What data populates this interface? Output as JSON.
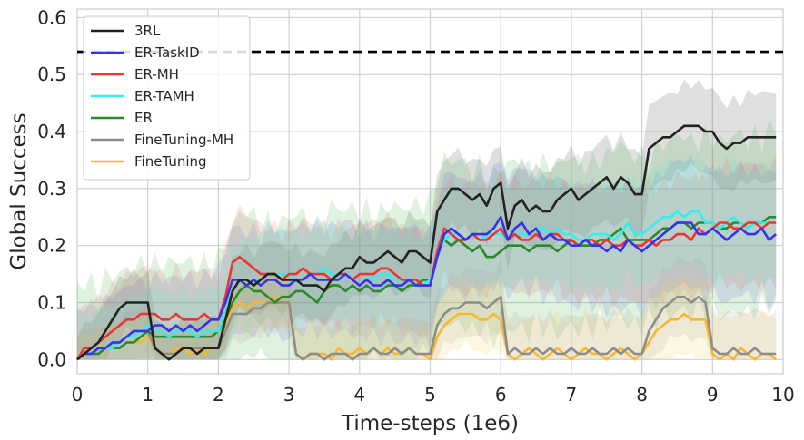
{
  "chart_data": {
    "type": "line",
    "title": "",
    "xlabel": "Time-steps (1e6)",
    "ylabel": "Global Success",
    "xlim": [
      0,
      10
    ],
    "ylim": [
      -0.025,
      0.615
    ],
    "xticks": [
      "0",
      "1",
      "2",
      "3",
      "4",
      "5",
      "6",
      "7",
      "8",
      "9",
      "10"
    ],
    "yticks": [
      "0.0",
      "0.1",
      "0.2",
      "0.3",
      "0.4",
      "0.5",
      "0.6"
    ],
    "grid": true,
    "legend_position": "top-left",
    "reference_line": {
      "y": 0.54,
      "style": "dashed",
      "color": "#000000"
    },
    "x": [
      0.0,
      0.1,
      0.2,
      0.3,
      0.4,
      0.5,
      0.6,
      0.7,
      0.8,
      0.9,
      1.0,
      1.1,
      1.2,
      1.3,
      1.4,
      1.5,
      1.6,
      1.7,
      1.8,
      1.9,
      2.0,
      2.1,
      2.2,
      2.3,
      2.4,
      2.5,
      2.6,
      2.7,
      2.8,
      2.9,
      3.0,
      3.1,
      3.2,
      3.3,
      3.4,
      3.5,
      3.6,
      3.7,
      3.8,
      3.9,
      4.0,
      4.1,
      4.2,
      4.3,
      4.4,
      4.5,
      4.6,
      4.7,
      4.8,
      4.9,
      5.0,
      5.1,
      5.2,
      5.3,
      5.4,
      5.5,
      5.6,
      5.7,
      5.8,
      5.9,
      6.0,
      6.1,
      6.2,
      6.3,
      6.4,
      6.5,
      6.6,
      6.7,
      6.8,
      6.9,
      7.0,
      7.1,
      7.2,
      7.3,
      7.4,
      7.5,
      7.6,
      7.7,
      7.8,
      7.9,
      8.0,
      8.1,
      8.2,
      8.3,
      8.4,
      8.5,
      8.6,
      8.7,
      8.8,
      8.9,
      9.0,
      9.1,
      9.2,
      9.3,
      9.4,
      9.5,
      9.6,
      9.7,
      9.8,
      9.9
    ],
    "series": [
      {
        "name": "3RL",
        "color": "#222222",
        "band_color": "#444444",
        "values": [
          0.0,
          0.01,
          0.02,
          0.03,
          0.05,
          0.07,
          0.09,
          0.1,
          0.1,
          0.1,
          0.1,
          0.02,
          0.01,
          0.0,
          0.01,
          0.02,
          0.02,
          0.01,
          0.02,
          0.02,
          0.02,
          0.07,
          0.12,
          0.14,
          0.14,
          0.13,
          0.14,
          0.15,
          0.15,
          0.14,
          0.14,
          0.14,
          0.13,
          0.13,
          0.13,
          0.12,
          0.14,
          0.15,
          0.16,
          0.16,
          0.18,
          0.17,
          0.17,
          0.18,
          0.19,
          0.18,
          0.17,
          0.19,
          0.19,
          0.18,
          0.17,
          0.26,
          0.28,
          0.3,
          0.3,
          0.29,
          0.28,
          0.29,
          0.27,
          0.3,
          0.31,
          0.23,
          0.27,
          0.28,
          0.26,
          0.27,
          0.26,
          0.26,
          0.28,
          0.29,
          0.3,
          0.28,
          0.29,
          0.3,
          0.31,
          0.32,
          0.3,
          0.32,
          0.31,
          0.29,
          0.29,
          0.37,
          0.38,
          0.39,
          0.39,
          0.4,
          0.41,
          0.41,
          0.41,
          0.4,
          0.4,
          0.38,
          0.37,
          0.38,
          0.38,
          0.39,
          0.39,
          0.39,
          0.39,
          0.39
        ]
      },
      {
        "name": "ER-TaskID",
        "color": "#3333ee",
        "band_color": "#6666ff",
        "values": [
          0.0,
          0.01,
          0.01,
          0.02,
          0.02,
          0.03,
          0.03,
          0.04,
          0.05,
          0.05,
          0.05,
          0.06,
          0.06,
          0.05,
          0.06,
          0.05,
          0.06,
          0.05,
          0.06,
          0.07,
          0.07,
          0.1,
          0.14,
          0.14,
          0.13,
          0.14,
          0.13,
          0.14,
          0.14,
          0.13,
          0.13,
          0.14,
          0.14,
          0.15,
          0.14,
          0.14,
          0.14,
          0.14,
          0.15,
          0.14,
          0.13,
          0.14,
          0.13,
          0.13,
          0.14,
          0.13,
          0.13,
          0.14,
          0.13,
          0.13,
          0.13,
          0.18,
          0.22,
          0.23,
          0.22,
          0.21,
          0.22,
          0.22,
          0.22,
          0.23,
          0.25,
          0.21,
          0.23,
          0.24,
          0.22,
          0.23,
          0.21,
          0.22,
          0.21,
          0.21,
          0.2,
          0.2,
          0.21,
          0.2,
          0.2,
          0.19,
          0.2,
          0.19,
          0.21,
          0.2,
          0.19,
          0.2,
          0.21,
          0.22,
          0.23,
          0.24,
          0.24,
          0.24,
          0.22,
          0.22,
          0.23,
          0.22,
          0.21,
          0.22,
          0.23,
          0.22,
          0.22,
          0.23,
          0.21,
          0.22
        ]
      },
      {
        "name": "ER-MH",
        "color": "#ee3333",
        "band_color": "#ff6666",
        "values": [
          0.0,
          0.02,
          0.02,
          0.03,
          0.04,
          0.05,
          0.06,
          0.07,
          0.07,
          0.08,
          0.08,
          0.08,
          0.07,
          0.07,
          0.08,
          0.07,
          0.07,
          0.07,
          0.08,
          0.07,
          0.07,
          0.11,
          0.17,
          0.18,
          0.17,
          0.16,
          0.15,
          0.15,
          0.15,
          0.14,
          0.15,
          0.15,
          0.16,
          0.15,
          0.15,
          0.15,
          0.14,
          0.15,
          0.15,
          0.14,
          0.15,
          0.15,
          0.15,
          0.16,
          0.16,
          0.15,
          0.14,
          0.14,
          0.14,
          0.13,
          0.13,
          0.19,
          0.23,
          0.22,
          0.21,
          0.21,
          0.22,
          0.21,
          0.21,
          0.22,
          0.23,
          0.21,
          0.22,
          0.21,
          0.21,
          0.22,
          0.21,
          0.22,
          0.22,
          0.21,
          0.21,
          0.2,
          0.21,
          0.21,
          0.2,
          0.21,
          0.2,
          0.2,
          0.21,
          0.2,
          0.2,
          0.21,
          0.2,
          0.21,
          0.21,
          0.22,
          0.22,
          0.21,
          0.23,
          0.22,
          0.23,
          0.24,
          0.24,
          0.23,
          0.23,
          0.24,
          0.24,
          0.23,
          0.24,
          0.24
        ]
      },
      {
        "name": "ER-TAMH",
        "color": "#33eeee",
        "band_color": "#66ffee",
        "values": [
          0.0,
          0.01,
          0.01,
          0.02,
          0.02,
          0.02,
          0.03,
          0.04,
          0.04,
          0.05,
          0.06,
          0.05,
          0.05,
          0.04,
          0.05,
          0.05,
          0.05,
          0.04,
          0.05,
          0.05,
          0.05,
          0.08,
          0.12,
          0.14,
          0.13,
          0.14,
          0.14,
          0.15,
          0.15,
          0.15,
          0.15,
          0.14,
          0.14,
          0.15,
          0.15,
          0.16,
          0.15,
          0.15,
          0.15,
          0.14,
          0.15,
          0.15,
          0.14,
          0.15,
          0.15,
          0.14,
          0.14,
          0.14,
          0.13,
          0.13,
          0.14,
          0.18,
          0.21,
          0.22,
          0.22,
          0.21,
          0.22,
          0.21,
          0.22,
          0.22,
          0.22,
          0.21,
          0.22,
          0.22,
          0.22,
          0.23,
          0.23,
          0.22,
          0.23,
          0.22,
          0.22,
          0.21,
          0.21,
          0.22,
          0.22,
          0.22,
          0.21,
          0.22,
          0.24,
          0.22,
          0.22,
          0.23,
          0.24,
          0.25,
          0.25,
          0.26,
          0.25,
          0.26,
          0.26,
          0.24,
          0.24,
          0.23,
          0.24,
          0.25,
          0.24,
          0.23,
          0.24,
          0.24,
          0.24,
          0.24
        ]
      },
      {
        "name": "ER",
        "color": "#2a8a2a",
        "band_color": "#44aa44",
        "values": [
          0.0,
          0.01,
          0.01,
          0.01,
          0.02,
          0.02,
          0.02,
          0.03,
          0.03,
          0.04,
          0.05,
          0.04,
          0.04,
          0.04,
          0.04,
          0.04,
          0.04,
          0.04,
          0.04,
          0.04,
          0.05,
          0.07,
          0.1,
          0.12,
          0.13,
          0.12,
          0.12,
          0.11,
          0.1,
          0.11,
          0.11,
          0.12,
          0.12,
          0.11,
          0.1,
          0.12,
          0.13,
          0.13,
          0.12,
          0.13,
          0.12,
          0.13,
          0.12,
          0.12,
          0.13,
          0.13,
          0.12,
          0.13,
          0.13,
          0.14,
          0.14,
          0.18,
          0.21,
          0.2,
          0.21,
          0.2,
          0.19,
          0.2,
          0.18,
          0.18,
          0.19,
          0.2,
          0.2,
          0.2,
          0.19,
          0.2,
          0.2,
          0.2,
          0.19,
          0.2,
          0.21,
          0.2,
          0.2,
          0.2,
          0.21,
          0.21,
          0.22,
          0.23,
          0.21,
          0.21,
          0.21,
          0.21,
          0.22,
          0.23,
          0.23,
          0.24,
          0.24,
          0.23,
          0.24,
          0.24,
          0.24,
          0.23,
          0.23,
          0.24,
          0.24,
          0.23,
          0.24,
          0.24,
          0.25,
          0.25
        ]
      },
      {
        "name": "FineTuning-MH",
        "color": "#8c8c8c",
        "band_color": "#a0a0a0",
        "values": [
          0.0,
          0.01,
          0.01,
          0.01,
          0.02,
          0.03,
          0.03,
          0.04,
          0.04,
          0.05,
          0.05,
          0.02,
          0.01,
          0.01,
          0.01,
          0.02,
          0.02,
          0.02,
          0.02,
          0.02,
          0.02,
          0.05,
          0.08,
          0.08,
          0.08,
          0.09,
          0.09,
          0.1,
          0.1,
          0.1,
          0.1,
          0.01,
          0.0,
          0.01,
          0.01,
          0.0,
          0.01,
          0.01,
          0.01,
          0.0,
          0.01,
          0.01,
          0.02,
          0.01,
          0.01,
          0.02,
          0.01,
          0.02,
          0.01,
          0.01,
          0.01,
          0.06,
          0.08,
          0.09,
          0.09,
          0.1,
          0.1,
          0.1,
          0.09,
          0.1,
          0.11,
          0.01,
          0.02,
          0.01,
          0.01,
          0.02,
          0.01,
          0.02,
          0.01,
          0.01,
          0.02,
          0.01,
          0.01,
          0.02,
          0.01,
          0.01,
          0.02,
          0.01,
          0.02,
          0.01,
          0.01,
          0.05,
          0.07,
          0.09,
          0.1,
          0.11,
          0.11,
          0.1,
          0.11,
          0.1,
          0.02,
          0.01,
          0.01,
          0.02,
          0.01,
          0.01,
          0.02,
          0.01,
          0.01,
          0.01
        ]
      },
      {
        "name": "FineTuning",
        "color": "#f5b731",
        "band_color": "#f5c85a",
        "values": [
          0.0,
          0.01,
          0.01,
          0.01,
          0.02,
          0.02,
          0.02,
          0.03,
          0.03,
          0.03,
          0.04,
          0.02,
          0.01,
          0.01,
          0.02,
          0.02,
          0.01,
          0.02,
          0.01,
          0.02,
          0.02,
          0.06,
          0.09,
          0.1,
          0.09,
          0.1,
          0.1,
          0.1,
          0.11,
          0.1,
          0.1,
          0.01,
          0.0,
          0.01,
          0.01,
          0.01,
          0.0,
          0.02,
          0.01,
          0.01,
          0.02,
          0.01,
          0.02,
          0.01,
          0.02,
          0.01,
          0.01,
          0.02,
          0.01,
          0.01,
          0.0,
          0.04,
          0.06,
          0.07,
          0.08,
          0.08,
          0.08,
          0.07,
          0.07,
          0.08,
          0.07,
          0.01,
          0.0,
          0.01,
          0.02,
          0.01,
          0.0,
          0.01,
          0.02,
          0.01,
          0.0,
          0.01,
          0.02,
          0.01,
          0.01,
          0.0,
          0.01,
          0.02,
          0.01,
          0.0,
          0.01,
          0.03,
          0.05,
          0.06,
          0.07,
          0.07,
          0.08,
          0.07,
          0.07,
          0.07,
          0.01,
          0.0,
          0.01,
          0.0,
          0.02,
          0.01,
          0.0,
          0.01,
          0.01,
          0.0
        ]
      }
    ]
  }
}
